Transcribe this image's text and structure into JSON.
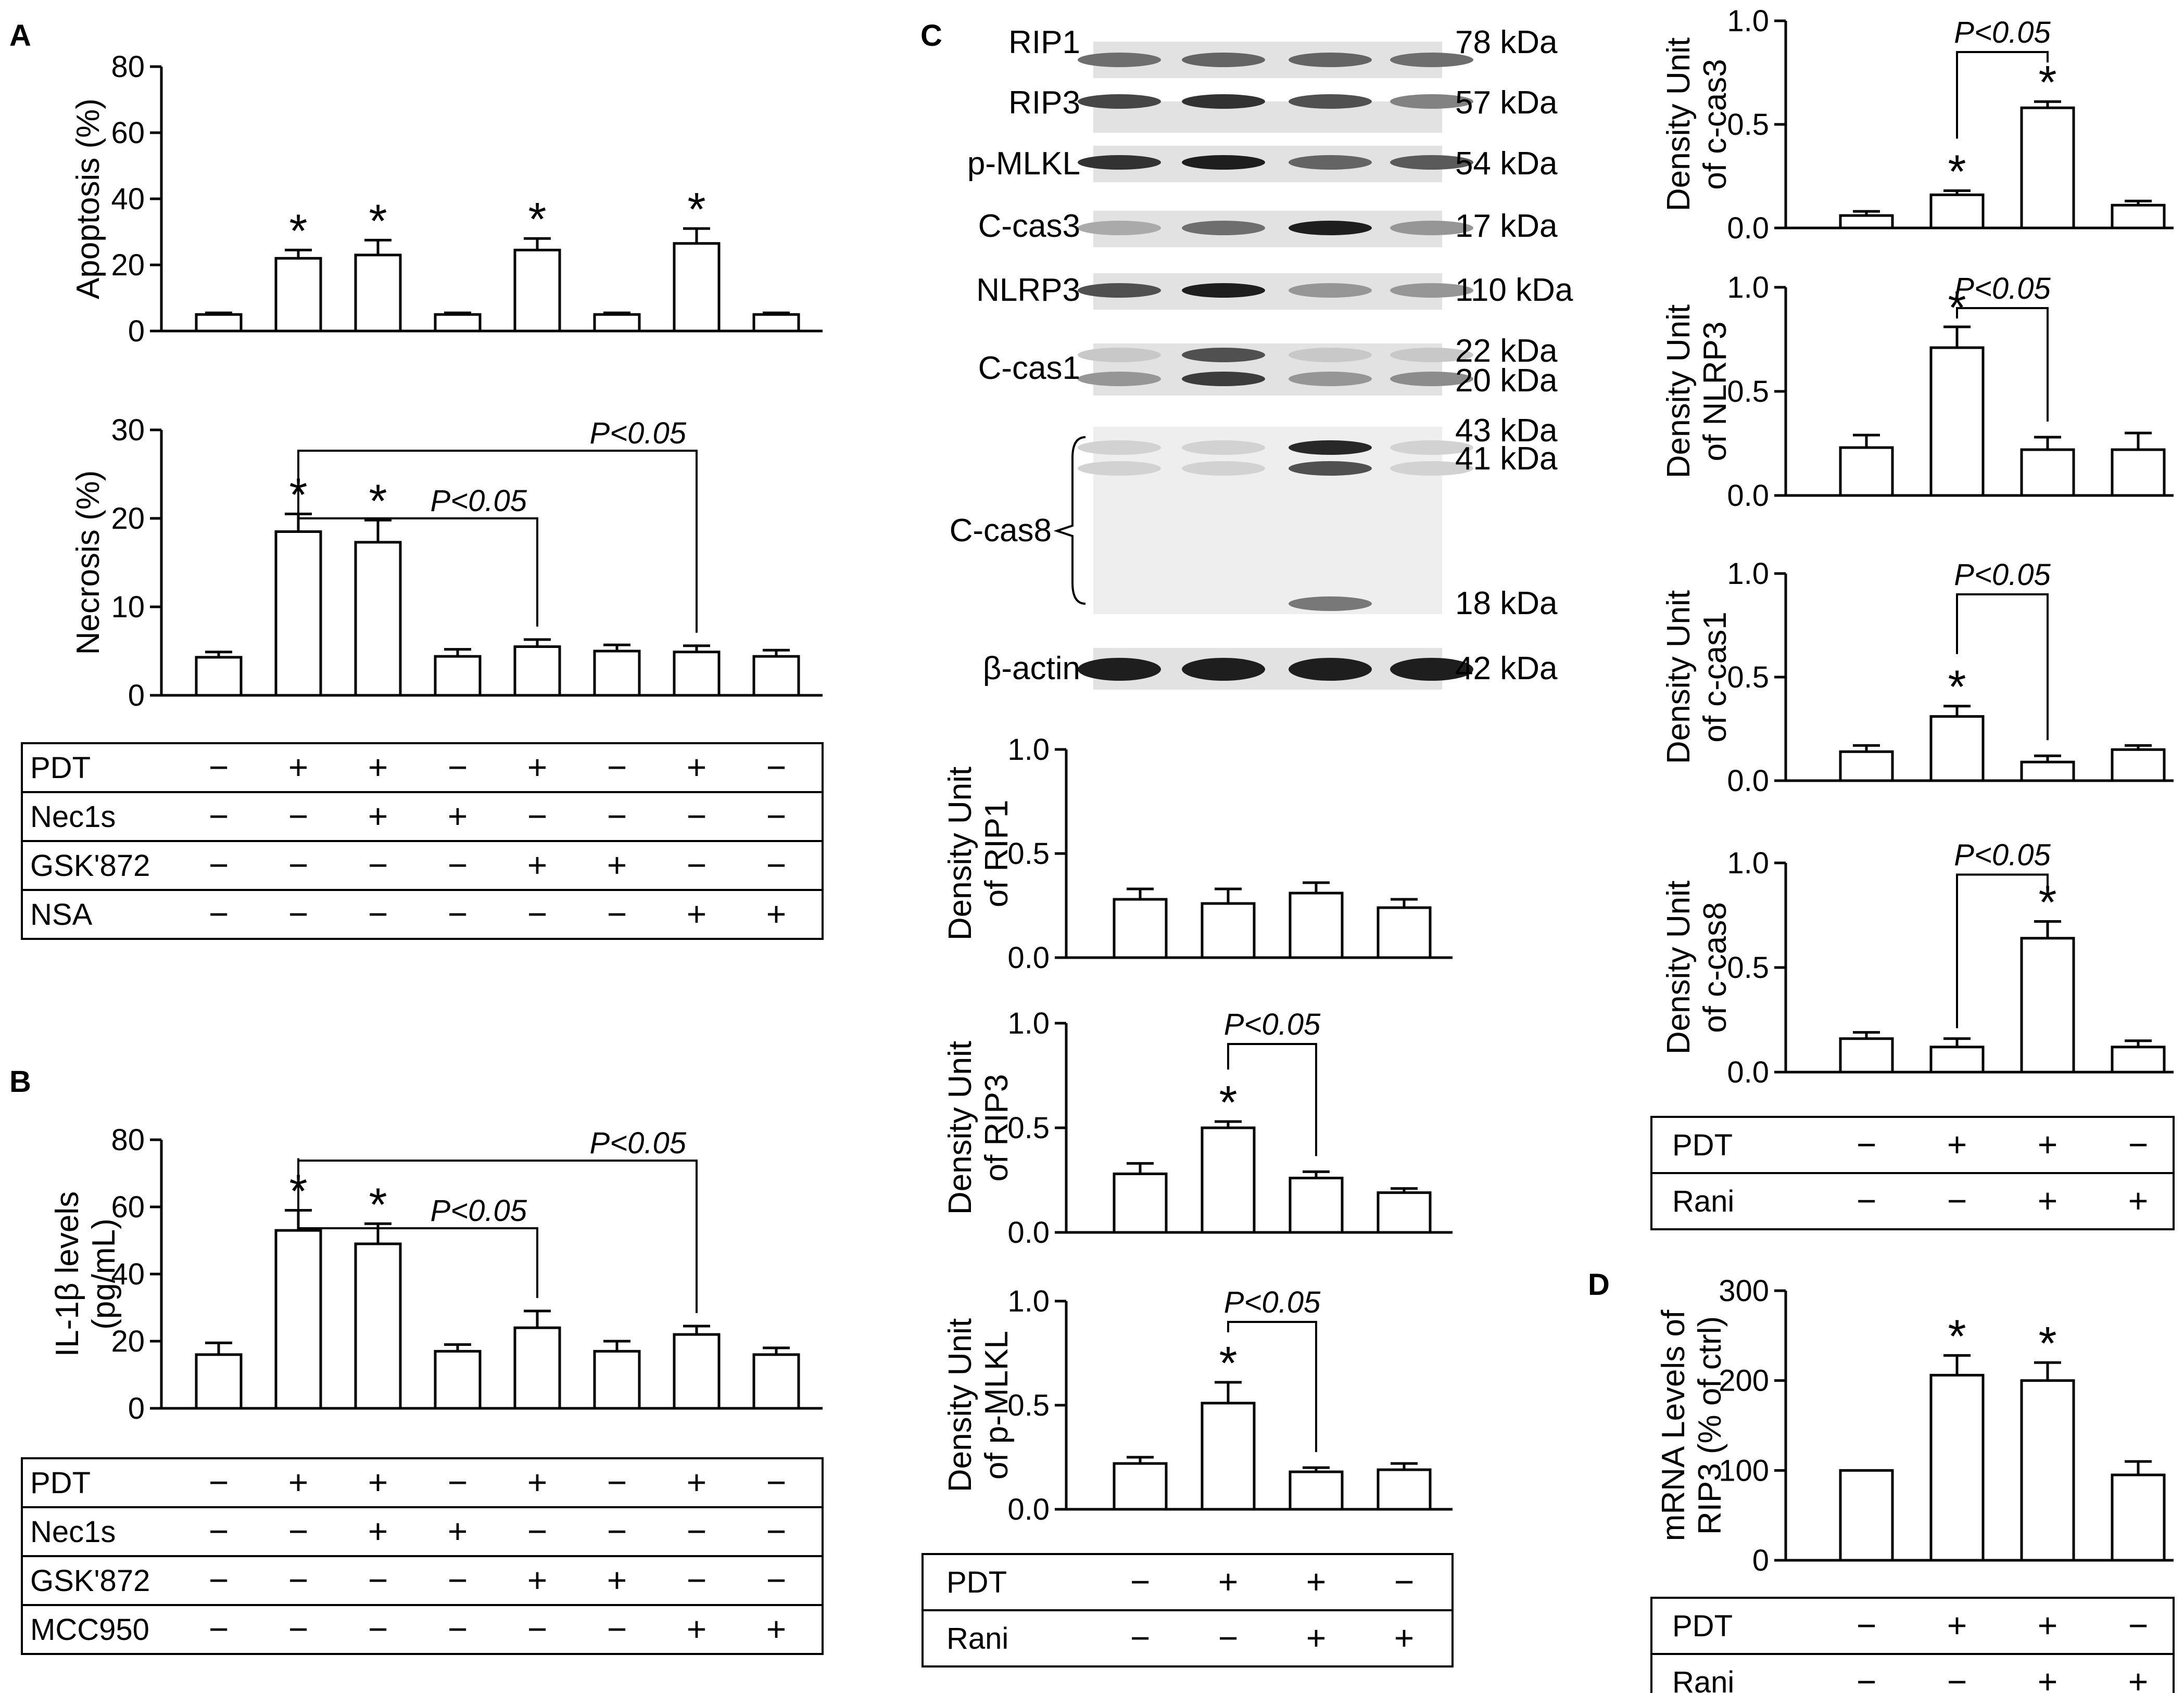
{
  "panel_letters": [
    "A",
    "B",
    "C",
    "D"
  ],
  "blot": {
    "rows": [
      {
        "name": "RIP1",
        "kda": [
          "78 kDa"
        ],
        "bands": [
          [
            0.55,
            0.6,
            0.6,
            0.55
          ]
        ]
      },
      {
        "name": "RIP3",
        "kda": [
          "57 kDa"
        ],
        "bands": [
          [
            0.75,
            0.85,
            0.7,
            0.45
          ]
        ]
      },
      {
        "name": "p-MLKL",
        "kda": [
          "54 kDa"
        ],
        "bands": [
          [
            0.85,
            0.95,
            0.6,
            0.65
          ]
        ]
      },
      {
        "name": "C-cas3",
        "kda": [
          "17 kDa"
        ],
        "bands": [
          [
            0.25,
            0.55,
            0.95,
            0.35
          ]
        ]
      },
      {
        "name": "NLRP3",
        "kda": [
          "110 kDa"
        ],
        "bands": [
          [
            0.7,
            0.95,
            0.35,
            0.35
          ]
        ]
      },
      {
        "name": "C-cas1",
        "kda": [
          "22 kDa",
          "20 kDa"
        ],
        "bands": [
          [
            0.1,
            0.7,
            0.1,
            0.1
          ],
          [
            0.35,
            0.8,
            0.35,
            0.4
          ]
        ]
      },
      {
        "name": "C-cas8",
        "kda": [
          "43 kDa",
          "41 kDa",
          "18 kDa"
        ],
        "bands": [
          [
            0.05,
            0.05,
            0.9,
            0.05
          ],
          [
            0.05,
            0.05,
            0.7,
            0.05
          ],
          [
            0.0,
            0.0,
            0.5,
            0.0
          ]
        ]
      },
      {
        "name": "β-actin",
        "kda": [
          "42 kDa"
        ],
        "bands": [
          [
            0.95,
            0.95,
            0.95,
            0.95
          ]
        ]
      }
    ]
  },
  "chart_data": [
    {
      "id": "A-apoptosis",
      "type": "bar",
      "panel": "A",
      "ylabel": [
        "Apoptosis (%)"
      ],
      "ylim": [
        0,
        80
      ],
      "yticks": [
        "0",
        "20",
        "40",
        "60",
        "80"
      ],
      "values": [
        5,
        22,
        23,
        5,
        24.5,
        5,
        26.5,
        5
      ],
      "errors": [
        0.5,
        2.5,
        4.5,
        0.5,
        3.5,
        0.5,
        4.5,
        0.5
      ],
      "stars": [
        false,
        true,
        true,
        false,
        true,
        false,
        true,
        false
      ],
      "comparisons": []
    },
    {
      "id": "A-necrosis",
      "type": "bar",
      "panel": "A",
      "ylabel": [
        "Necrosis (%)"
      ],
      "ylim": [
        0,
        30
      ],
      "yticks": [
        "0",
        "10",
        "20",
        "30"
      ],
      "values": [
        4.3,
        18.5,
        17.3,
        4.4,
        5.5,
        5,
        4.9,
        4.4
      ],
      "errors": [
        0.6,
        2.0,
        2.5,
        0.8,
        0.8,
        0.7,
        0.7,
        0.7
      ],
      "stars": [
        false,
        true,
        true,
        false,
        false,
        false,
        false,
        false
      ],
      "comparisons": [
        {
          "from": 1,
          "to": 4,
          "label": "P<0.05"
        },
        {
          "from": 1,
          "to": 6,
          "label": "P<0.05"
        }
      ],
      "treatments": [
        {
          "name": "PDT",
          "signs": [
            "−",
            "+",
            "+",
            "−",
            "+",
            "−",
            "+",
            "−"
          ]
        },
        {
          "name": "Nec1s",
          "signs": [
            "−",
            "−",
            "+",
            "+",
            "−",
            "−",
            "−",
            "−"
          ]
        },
        {
          "name": "GSK'872",
          "signs": [
            "−",
            "−",
            "−",
            "−",
            "+",
            "+",
            "−",
            "−"
          ]
        },
        {
          "name": "NSA",
          "signs": [
            "−",
            "−",
            "−",
            "−",
            "−",
            "−",
            "+",
            "+"
          ]
        }
      ]
    },
    {
      "id": "B-il1b",
      "type": "bar",
      "panel": "B",
      "ylabel": [
        "IL-1β levels",
        "(pg/mL)"
      ],
      "ylim": [
        0,
        80
      ],
      "yticks": [
        "0",
        "20",
        "40",
        "60",
        "80"
      ],
      "values": [
        16,
        53,
        49,
        17,
        24,
        17,
        22,
        16
      ],
      "errors": [
        3.5,
        6,
        6,
        2,
        5,
        3,
        2.5,
        2
      ],
      "stars": [
        false,
        true,
        true,
        false,
        false,
        false,
        false,
        false
      ],
      "comparisons": [
        {
          "from": 1,
          "to": 4,
          "label": "P<0.05"
        },
        {
          "from": 1,
          "to": 6,
          "label": "P<0.05"
        }
      ],
      "treatments": [
        {
          "name": "PDT",
          "signs": [
            "−",
            "+",
            "+",
            "−",
            "+",
            "−",
            "+",
            "−"
          ]
        },
        {
          "name": "Nec1s",
          "signs": [
            "−",
            "−",
            "+",
            "+",
            "−",
            "−",
            "−",
            "−"
          ]
        },
        {
          "name": "GSK'872",
          "signs": [
            "−",
            "−",
            "−",
            "−",
            "+",
            "+",
            "−",
            "−"
          ]
        },
        {
          "name": "MCC950",
          "signs": [
            "−",
            "−",
            "−",
            "−",
            "−",
            "−",
            "+",
            "+"
          ]
        }
      ]
    },
    {
      "id": "C-rip1",
      "type": "bar",
      "panel": "C",
      "ylabel": [
        "Density Unit",
        "of RIP1"
      ],
      "ylim": [
        0,
        1
      ],
      "yticks": [
        "0.0",
        "0.5",
        "1.0"
      ],
      "values": [
        0.28,
        0.26,
        0.31,
        0.24
      ],
      "errors": [
        0.05,
        0.07,
        0.05,
        0.04
      ],
      "stars": [
        false,
        false,
        false,
        false
      ],
      "comparisons": []
    },
    {
      "id": "C-rip3",
      "type": "bar",
      "panel": "C",
      "ylabel": [
        "Density Unit",
        "of RIP3"
      ],
      "ylim": [
        0,
        1
      ],
      "yticks": [
        "0.0",
        "0.5",
        "1.0"
      ],
      "values": [
        0.28,
        0.5,
        0.26,
        0.19
      ],
      "errors": [
        0.05,
        0.03,
        0.03,
        0.02
      ],
      "stars": [
        false,
        true,
        false,
        false
      ],
      "comparisons": [
        {
          "from": 1,
          "to": 2,
          "label": "P<0.05"
        }
      ]
    },
    {
      "id": "C-pmlkl",
      "type": "bar",
      "panel": "C",
      "ylabel": [
        "Density Unit",
        "of p-MLKL"
      ],
      "ylim": [
        0,
        1
      ],
      "yticks": [
        "0.0",
        "0.5",
        "1.0"
      ],
      "values": [
        0.22,
        0.51,
        0.18,
        0.19
      ],
      "errors": [
        0.03,
        0.1,
        0.02,
        0.03
      ],
      "stars": [
        false,
        true,
        false,
        false
      ],
      "comparisons": [
        {
          "from": 1,
          "to": 2,
          "label": "P<0.05"
        }
      ],
      "treatments": [
        {
          "name": "PDT",
          "signs": [
            "−",
            "+",
            "+",
            "−"
          ]
        },
        {
          "name": "Rani",
          "signs": [
            "−",
            "−",
            "+",
            "+"
          ]
        }
      ]
    },
    {
      "id": "C-ccas3",
      "type": "bar",
      "panel": "C",
      "ylabel": [
        "Density Unit",
        "of c-cas3"
      ],
      "ylim": [
        0,
        1
      ],
      "yticks": [
        "0.0",
        "0.5",
        "1.0"
      ],
      "values": [
        0.06,
        0.16,
        0.58,
        0.11
      ],
      "errors": [
        0.02,
        0.02,
        0.03,
        0.02
      ],
      "stars": [
        false,
        true,
        true,
        false
      ],
      "comparisons": [
        {
          "from": 1,
          "to": 2,
          "label": "P<0.05"
        }
      ]
    },
    {
      "id": "C-nlrp3",
      "type": "bar",
      "panel": "C",
      "ylabel": [
        "Density Unit",
        "of NLRP3"
      ],
      "ylim": [
        0,
        1
      ],
      "yticks": [
        "0.0",
        "0.5",
        "1.0"
      ],
      "values": [
        0.23,
        0.71,
        0.22,
        0.22
      ],
      "errors": [
        0.06,
        0.1,
        0.06,
        0.08
      ],
      "stars": [
        false,
        true,
        false,
        false
      ],
      "comparisons": [
        {
          "from": 1,
          "to": 2,
          "label": "P<0.05"
        }
      ]
    },
    {
      "id": "C-ccas1",
      "type": "bar",
      "panel": "C",
      "ylabel": [
        "Density Unit",
        "of c-cas1"
      ],
      "ylim": [
        0,
        1
      ],
      "yticks": [
        "0.0",
        "0.5",
        "1.0"
      ],
      "values": [
        0.14,
        0.31,
        0.09,
        0.15
      ],
      "errors": [
        0.03,
        0.05,
        0.03,
        0.02
      ],
      "stars": [
        false,
        true,
        false,
        false
      ],
      "comparisons": [
        {
          "from": 1,
          "to": 2,
          "label": "P<0.05"
        }
      ]
    },
    {
      "id": "C-ccas8",
      "type": "bar",
      "panel": "C",
      "ylabel": [
        "Density Unit",
        "of c-cas8"
      ],
      "ylim": [
        0,
        1
      ],
      "yticks": [
        "0.0",
        "0.5",
        "1.0"
      ],
      "values": [
        0.16,
        0.12,
        0.64,
        0.12
      ],
      "errors": [
        0.03,
        0.04,
        0.08,
        0.03
      ],
      "stars": [
        false,
        false,
        true,
        false
      ],
      "comparisons": [
        {
          "from": 1,
          "to": 2,
          "label": "P<0.05",
          "side": "below"
        }
      ],
      "treatments": [
        {
          "name": "PDT",
          "signs": [
            "−",
            "+",
            "+",
            "−"
          ]
        },
        {
          "name": "Rani",
          "signs": [
            "−",
            "−",
            "+",
            "+"
          ]
        }
      ]
    },
    {
      "id": "D-mrna",
      "type": "bar",
      "panel": "D",
      "ylabel": [
        "mRNA Levels of",
        "RIP3 (% of ctrl)"
      ],
      "ylim": [
        0,
        300
      ],
      "yticks": [
        "0",
        "100",
        "200",
        "300"
      ],
      "values": [
        100,
        206,
        200,
        95
      ],
      "errors": [
        0,
        22,
        20,
        15
      ],
      "stars": [
        false,
        true,
        true,
        false
      ],
      "comparisons": [],
      "treatments": [
        {
          "name": "PDT",
          "signs": [
            "−",
            "+",
            "+",
            "−"
          ]
        },
        {
          "name": "Rani",
          "signs": [
            "−",
            "−",
            "+",
            "+"
          ]
        }
      ]
    }
  ]
}
